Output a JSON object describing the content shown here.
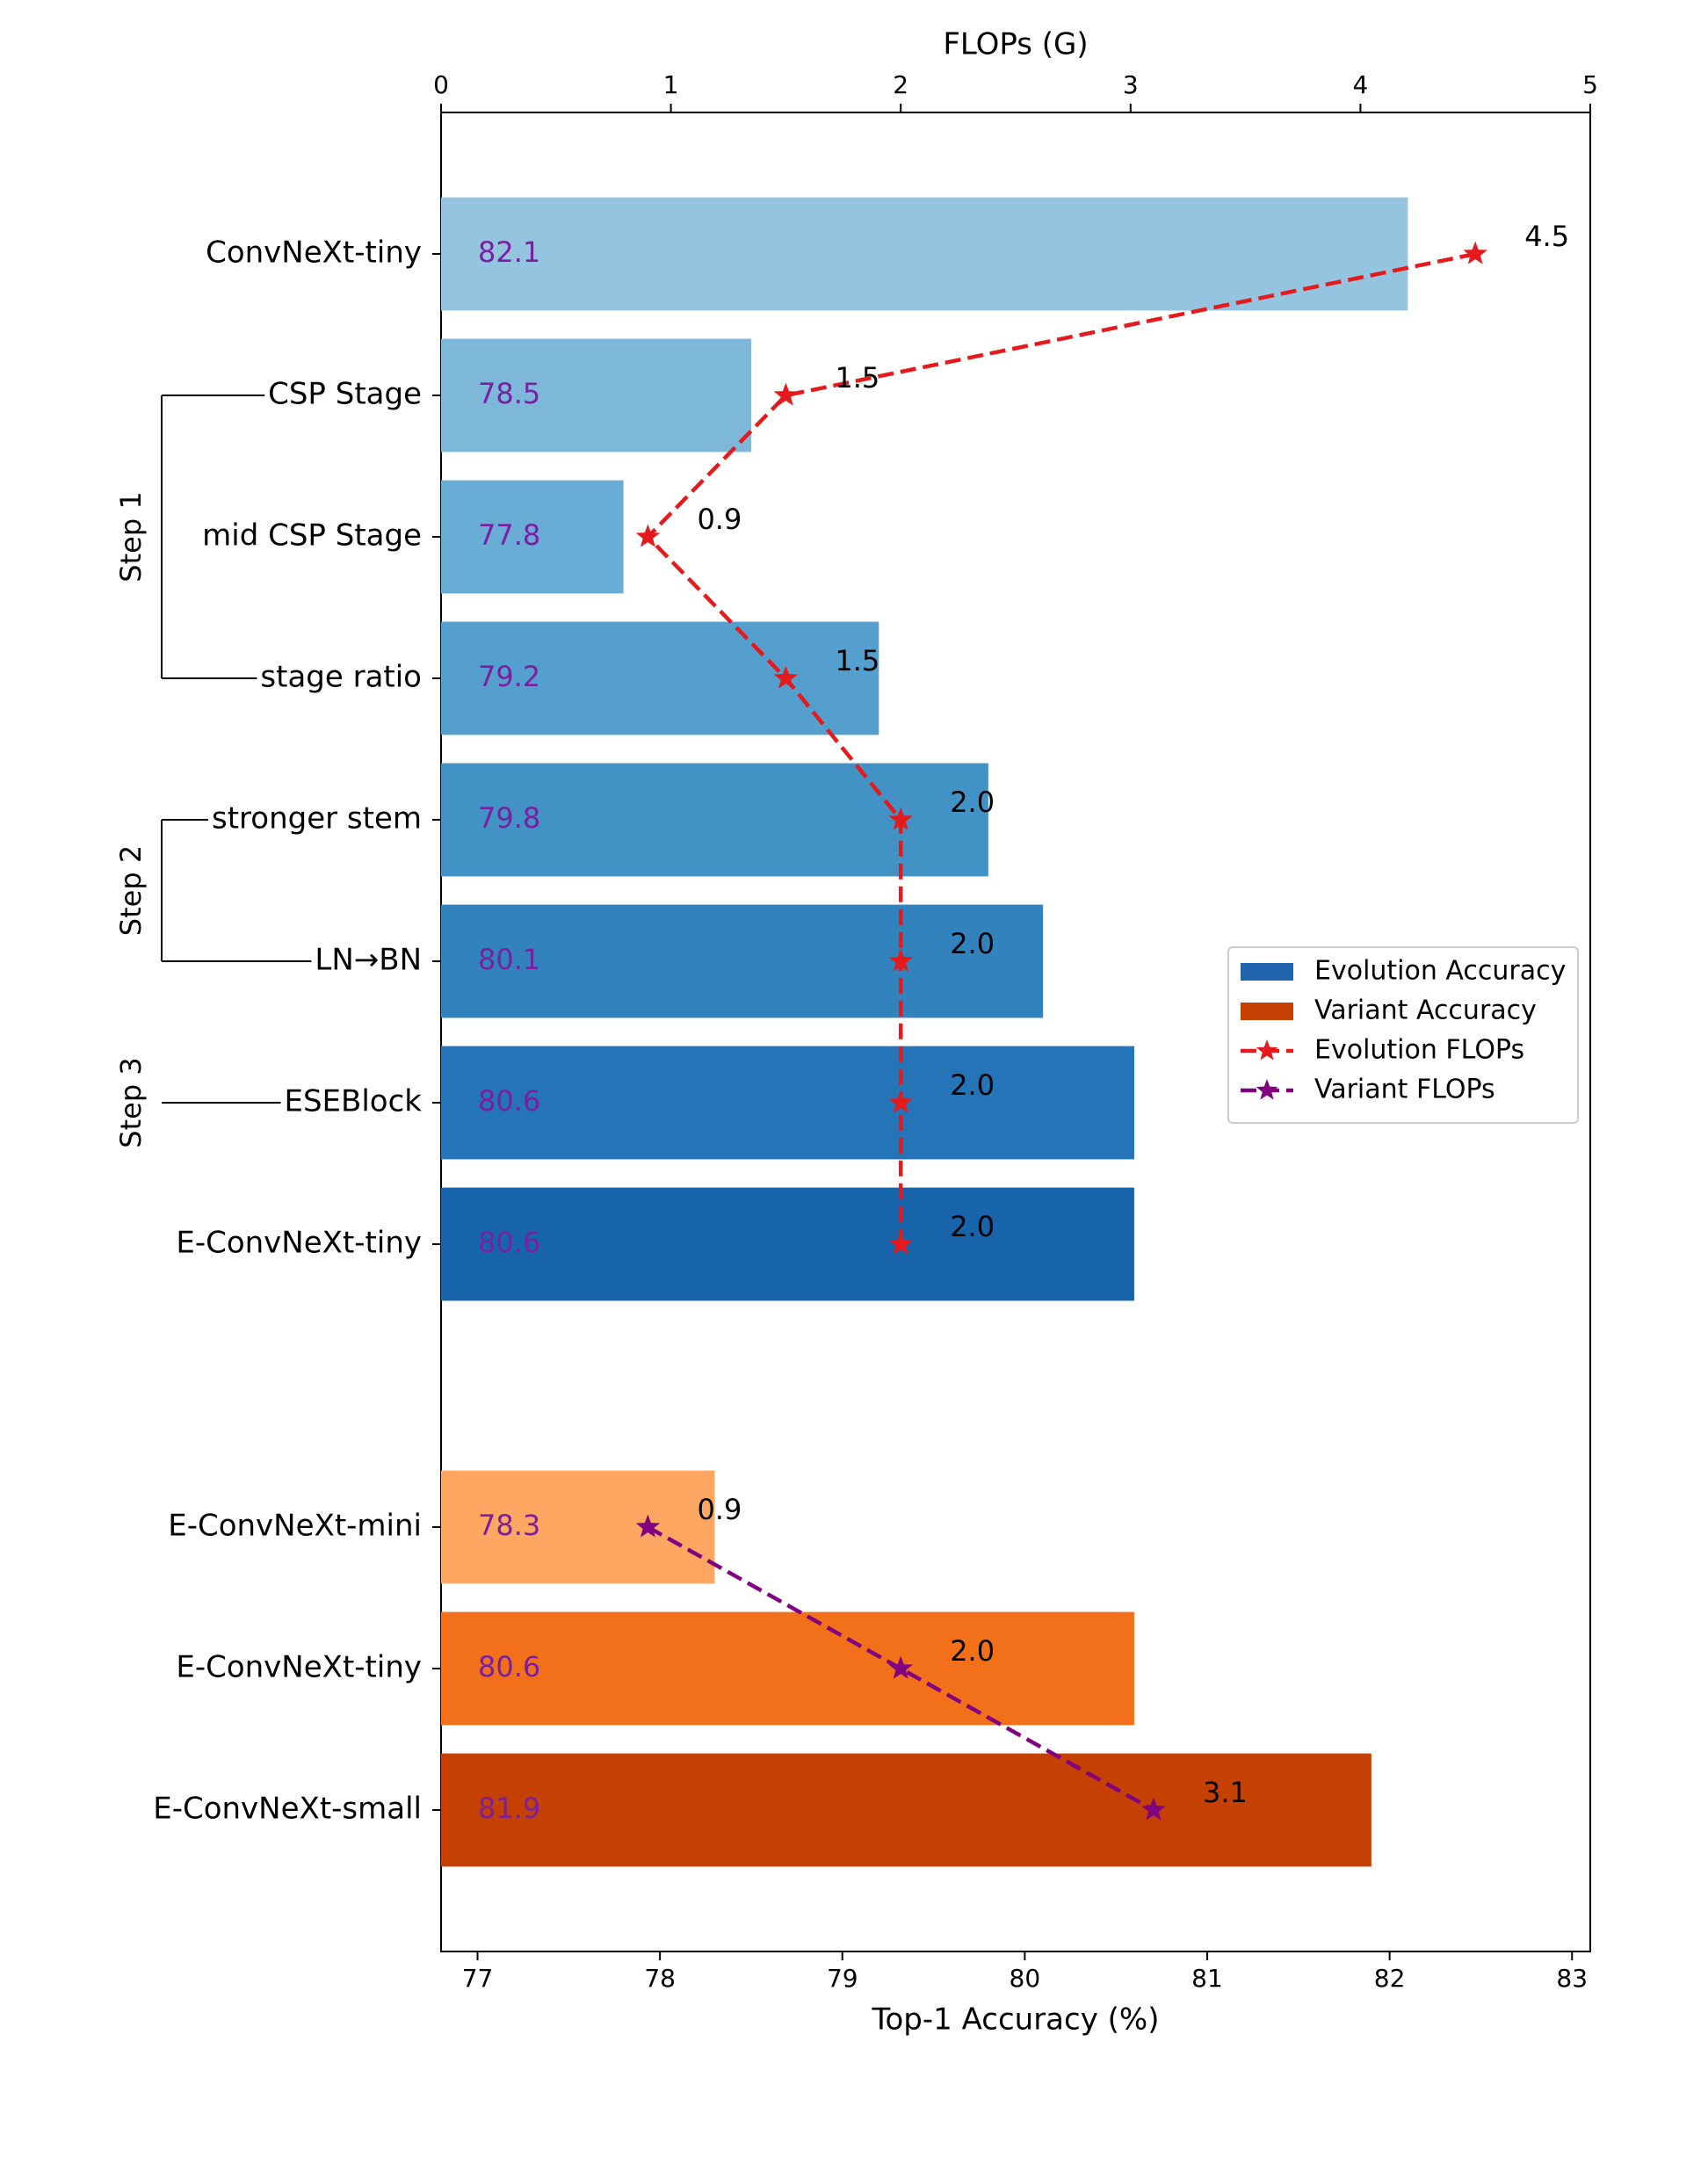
{
  "chart_data": {
    "type": "barh",
    "xlabel": "Top-1 Accuracy (%)",
    "x2label": "FLOPs (G)",
    "categories": [
      "ConvNeXt-tiny",
      "CSP Stage",
      "mid CSP Stage",
      "stage ratio",
      "stronger stem",
      "LN→BN",
      "ESEBlock",
      "E-ConvNeXt-tiny",
      null,
      "E-ConvNeXt-mini",
      "E-ConvNeXt-tiny",
      "E-ConvNeXt-small"
    ],
    "annotations": [
      "Step 1",
      "Step 2",
      "Step 3"
    ],
    "xlim": [
      76.8,
      83.1
    ],
    "xticks": [
      77,
      78,
      79,
      80,
      81,
      82,
      83
    ],
    "x2lim": [
      0,
      5
    ],
    "x2ticks": [
      0,
      1,
      2,
      3,
      4,
      5
    ],
    "legend": "center right",
    "series": [
      {
        "name": "Evolution Accuracy",
        "type": "barh",
        "color": "#1f64ad",
        "colors": [
          "#94c4df",
          "#7db8da",
          "#69acd5",
          "#549fcd",
          "#4292c6",
          "#3282be",
          "#2474b7",
          "#1764ab",
          null,
          null,
          null,
          null
        ],
        "values": [
          82.1,
          78.5,
          77.8,
          79.2,
          79.8,
          80.1,
          80.6,
          80.6,
          null,
          null,
          null,
          null
        ]
      },
      {
        "name": "Variant Accuracy",
        "type": "barh",
        "color": "#c44103",
        "colors": [
          null,
          null,
          null,
          null,
          null,
          null,
          null,
          null,
          null,
          "#fda762",
          "#f3701b",
          "#c44103"
        ],
        "values": [
          null,
          null,
          null,
          null,
          null,
          null,
          null,
          null,
          null,
          78.3,
          80.6,
          81.9
        ]
      },
      {
        "name": "Evolution FLOPs",
        "type": "line",
        "axis": "x2",
        "color": "#e41a1c",
        "values": [
          4.5,
          1.5,
          0.9,
          1.5,
          2,
          2,
          2,
          2,
          null,
          null,
          null,
          null
        ],
        "value_labels": [
          "4.5",
          "1.5",
          "0.9",
          "1.5",
          "2.0",
          "2.0",
          "2.0",
          "2.0",
          null,
          null,
          null,
          null
        ]
      },
      {
        "name": "Variant FLOPs",
        "type": "line",
        "axis": "x2",
        "color": "#800080",
        "values": [
          null,
          null,
          null,
          null,
          null,
          null,
          null,
          null,
          null,
          0.9,
          2,
          3.1
        ],
        "value_labels": [
          null,
          null,
          null,
          null,
          null,
          null,
          null,
          null,
          null,
          "0.9",
          "2.0",
          "3.1"
        ]
      }
    ]
  }
}
